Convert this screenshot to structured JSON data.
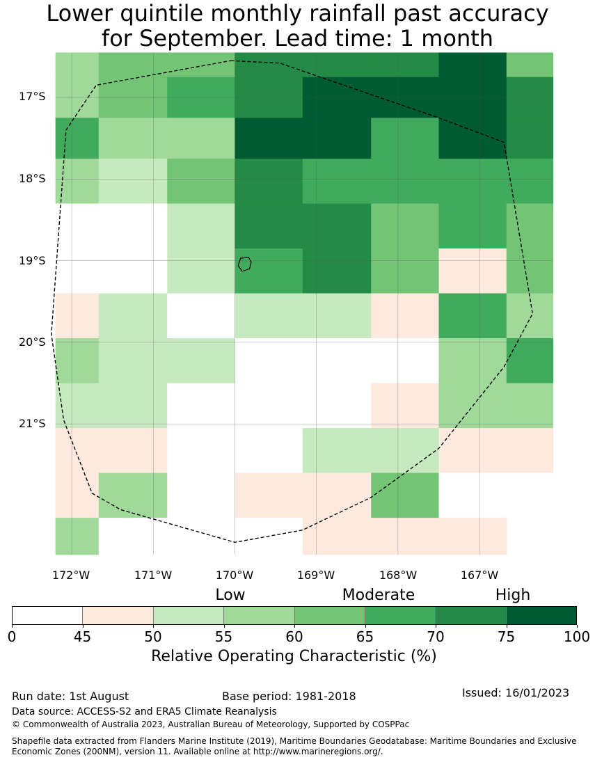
{
  "title": {
    "line1": "Lower quintile monthly rainfall past accuracy",
    "line2": "for September. Lead time: 1 month"
  },
  "map": {
    "lat_labels": [
      "17°S",
      "18°S",
      "19°S",
      "20°S",
      "21°S"
    ],
    "lon_labels": [
      "172°W",
      "171°W",
      "170°W",
      "169°W",
      "168°W",
      "167°W"
    ],
    "lon_edges": [
      -172.2,
      -171.67,
      -170.83,
      -170.0,
      -169.17,
      -168.33,
      -167.5,
      -166.67,
      -166.1
    ],
    "lat_rows": [
      {
        "top": -16.45,
        "bottom": -16.75
      },
      {
        "top": -16.75,
        "bottom": -17.25
      },
      {
        "top": -17.25,
        "bottom": -17.75
      },
      {
        "top": -17.75,
        "bottom": -18.3
      },
      {
        "top": -18.3,
        "bottom": -18.85
      },
      {
        "top": -18.85,
        "bottom": -19.4
      },
      {
        "top": -19.4,
        "bottom": -19.95
      },
      {
        "top": -19.95,
        "bottom": -20.5
      },
      {
        "top": -20.5,
        "bottom": -21.05
      },
      {
        "top": -21.05,
        "bottom": -21.6
      },
      {
        "top": -21.6,
        "bottom": -22.15
      },
      {
        "top": -22.15,
        "bottom": -22.6
      }
    ],
    "grid": [
      [
        3,
        4,
        4,
        6,
        6,
        6,
        7,
        4
      ],
      [
        3,
        4,
        5,
        6,
        7,
        7,
        7,
        6
      ],
      [
        5,
        3,
        3,
        7,
        7,
        5,
        7,
        6
      ],
      [
        3,
        2,
        4,
        6,
        5,
        5,
        5,
        5
      ],
      [
        0,
        0,
        2,
        6,
        6,
        4,
        5,
        4
      ],
      [
        0,
        0,
        2,
        5,
        6,
        4,
        1,
        4
      ],
      [
        1,
        2,
        0,
        2,
        2,
        1,
        5,
        3
      ],
      [
        3,
        2,
        2,
        0,
        0,
        0,
        3,
        5
      ],
      [
        2,
        2,
        0,
        0,
        0,
        1,
        3,
        3
      ],
      [
        1,
        1,
        0,
        0,
        2,
        2,
        1,
        1
      ],
      [
        1,
        3,
        0,
        1,
        1,
        4,
        0,
        0
      ],
      [
        3,
        0,
        0,
        0,
        1,
        1,
        1,
        null
      ]
    ],
    "boundary": [
      [
        -170.05,
        -16.55
      ],
      [
        -169.45,
        -16.58
      ],
      [
        -167.5,
        -17.25
      ],
      [
        -166.7,
        -17.55
      ],
      [
        -166.35,
        -19.65
      ],
      [
        -166.7,
        -20.3
      ],
      [
        -167.5,
        -21.3
      ],
      [
        -168.33,
        -21.9
      ],
      [
        -169.17,
        -22.3
      ],
      [
        -170.0,
        -22.45
      ],
      [
        -171.4,
        -22.05
      ],
      [
        -171.75,
        -21.85
      ],
      [
        -172.1,
        -20.95
      ],
      [
        -172.25,
        -19.9
      ],
      [
        -172.07,
        -17.4
      ],
      [
        -171.7,
        -16.85
      ],
      [
        -170.05,
        -16.55
      ]
    ],
    "island": [
      [
        -169.93,
        -18.97
      ],
      [
        -169.83,
        -18.96
      ],
      [
        -169.8,
        -19.02
      ],
      [
        -169.82,
        -19.1
      ],
      [
        -169.91,
        -19.13
      ],
      [
        -169.96,
        -19.06
      ],
      [
        -169.93,
        -18.97
      ]
    ]
  },
  "colorbar": {
    "colors": [
      "#ffffff",
      "#fee9df",
      "#c7e9c0",
      "#a1d99b",
      "#74c476",
      "#41ab5d",
      "#238b45",
      "#005a32"
    ],
    "ticks": [
      "0",
      "45",
      "50",
      "55",
      "60",
      "65",
      "70",
      "75",
      "100"
    ],
    "categories": [
      "Low",
      "Moderate",
      "High"
    ],
    "label": "Relative Operating Characteristic (%)"
  },
  "footer": {
    "run_date": "Run date: 1st August",
    "base_period": "Base period: 1981-2018",
    "issued": "Issued: 16/01/2023",
    "data_source": "Data source: ACCESS-S2 and ERA5 Climate Reanalysis",
    "copyright": "© Commonwealth of Australia 2023, Australian Bureau of Meteorology, Supported by COSPPac",
    "shapefile_line1": "Shapefile data extracted from Flanders Marine Institute (2019), Maritime Boundaries Geodatabase: Maritime Boundaries and Exclusive",
    "shapefile_line2": "Economic Zones (200NM), version 11. Available online at http://www.marineregions.org/."
  }
}
